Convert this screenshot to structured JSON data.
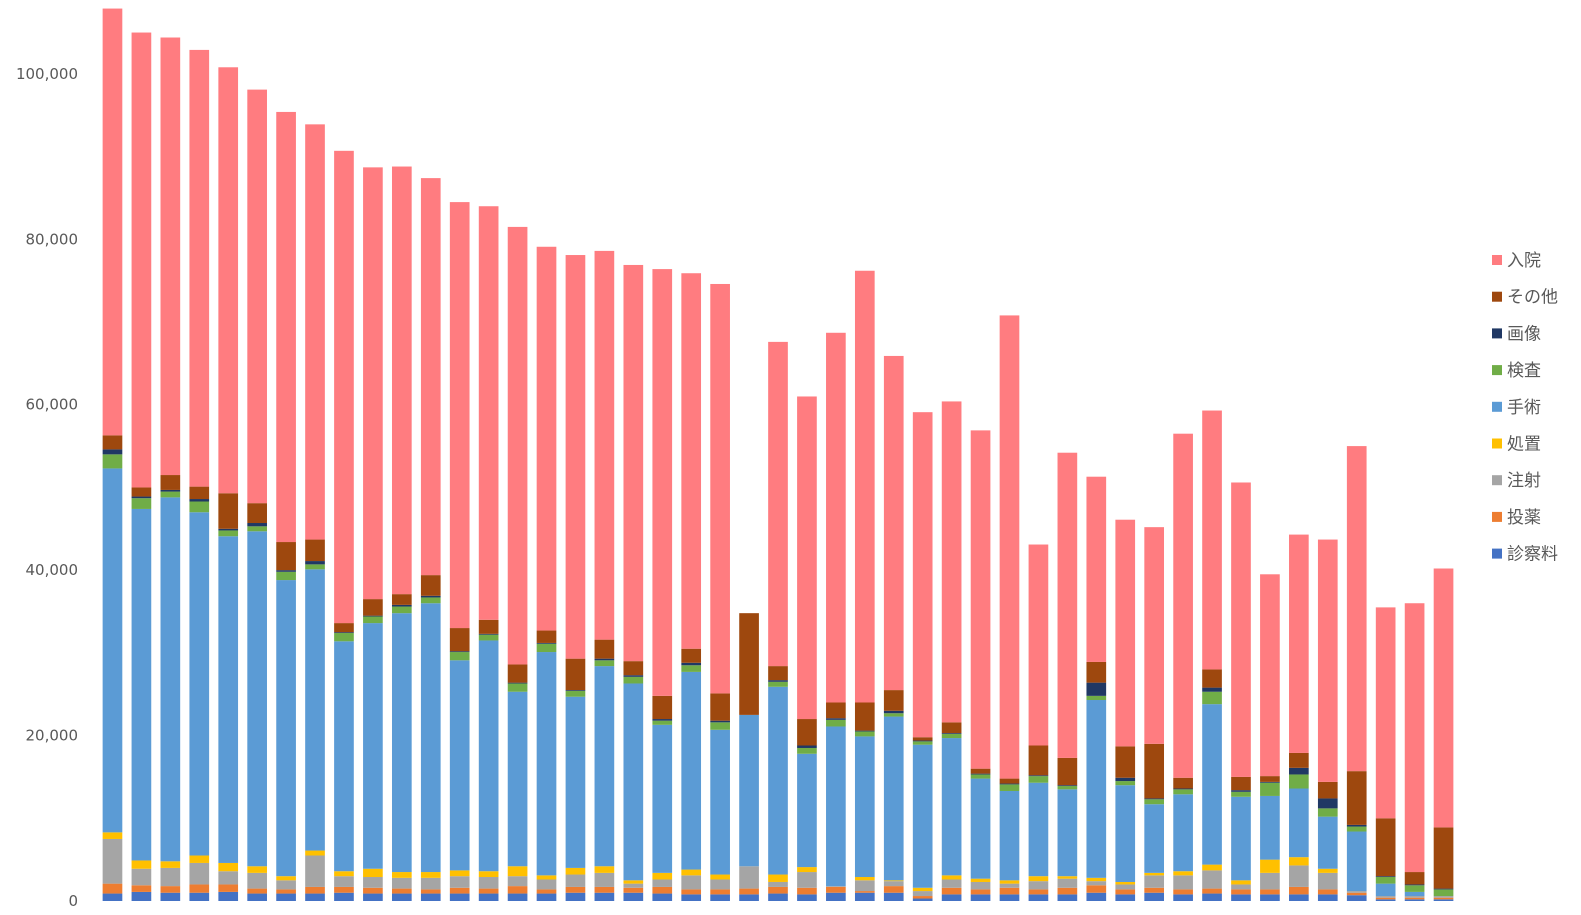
{
  "chart_data": {
    "type": "bar",
    "stacked": true,
    "title": "",
    "xlabel": "",
    "ylabel": "",
    "ylim": [
      0,
      107000
    ],
    "y_ticks": [
      "0",
      "20,000",
      "40,000",
      "60,000",
      "80,000",
      "100,000"
    ],
    "y_tick_values": [
      0,
      20000,
      40000,
      60000,
      80000,
      100000
    ],
    "grid": false,
    "legend_position": "right",
    "bar_count": 47,
    "series": [
      {
        "name": "診察料",
        "color": "#4472C4",
        "values": [
          900,
          1100,
          1000,
          1000,
          1100,
          900,
          900,
          900,
          1000,
          900,
          900,
          900,
          900,
          900,
          900,
          900,
          1000,
          1000,
          1000,
          900,
          800,
          800,
          800,
          900,
          800,
          1000,
          1000,
          1000,
          300,
          800,
          800,
          800,
          800,
          800,
          1000,
          800,
          1000,
          800,
          900,
          800,
          800,
          800,
          800,
          700,
          200,
          200,
          200
        ]
      },
      {
        "name": "投薬",
        "color": "#ED7D31",
        "values": [
          1200,
          800,
          800,
          1000,
          900,
          600,
          500,
          800,
          700,
          700,
          600,
          500,
          700,
          600,
          900,
          500,
          700,
          700,
          600,
          800,
          600,
          600,
          700,
          800,
          800,
          700,
          200,
          800,
          300,
          800,
          600,
          800,
          600,
          800,
          900,
          600,
          600,
          600,
          600,
          600,
          600,
          900,
          600,
          300,
          200,
          200,
          200
        ]
      },
      {
        "name": "注射",
        "color": "#A5A5A5",
        "values": [
          5400,
          2000,
          2200,
          2600,
          1600,
          1900,
          1100,
          3800,
          1300,
          1300,
          1300,
          1400,
          1400,
          1400,
          1200,
          1200,
          1500,
          1700,
          500,
          900,
          1700,
          1200,
          2700,
          600,
          1900,
          100,
          1300,
          600,
          600,
          1000,
          900,
          500,
          1000,
          1100,
          500,
          600,
          1500,
          1700,
          2200,
          600,
          2000,
          2600,
          2000,
          200,
          200,
          200,
          200
        ]
      },
      {
        "name": "処置",
        "color": "#FFC000",
        "values": [
          800,
          1000,
          800,
          900,
          1000,
          800,
          500,
          600,
          600,
          1000,
          700,
          700,
          700,
          700,
          1200,
          500,
          800,
          800,
          400,
          800,
          700,
          600,
          0,
          900,
          600,
          0,
          400,
          100,
          400,
          500,
          400,
          400,
          600,
          300,
          400,
          300,
          300,
          500,
          700,
          500,
          1600,
          1000,
          500,
          0,
          0,
          0,
          0
        ]
      },
      {
        "name": "手術",
        "color": "#5B9BD5",
        "values": [
          44000,
          42500,
          44000,
          41500,
          39500,
          40500,
          35800,
          34000,
          27800,
          29700,
          31300,
          32500,
          25400,
          27900,
          21100,
          27000,
          20700,
          24200,
          23800,
          17900,
          23900,
          17500,
          18300,
          22700,
          13700,
          19300,
          17000,
          19800,
          17300,
          16600,
          12100,
          10800,
          11300,
          10500,
          21500,
          11700,
          8300,
          9300,
          19400,
          10100,
          7700,
          8300,
          6300,
          7200,
          1500,
          500,
          0
        ]
      },
      {
        "name": "検査",
        "color": "#70AD47",
        "values": [
          1700,
          1300,
          700,
          1300,
          700,
          600,
          1000,
          600,
          1000,
          800,
          800,
          700,
          1000,
          700,
          1000,
          1000,
          700,
          700,
          800,
          500,
          800,
          900,
          0,
          600,
          700,
          800,
          600,
          400,
          400,
          500,
          500,
          800,
          800,
          400,
          500,
          500,
          600,
          600,
          1500,
          600,
          1600,
          1700,
          1000,
          600,
          800,
          800,
          800
        ]
      },
      {
        "name": "画像",
        "color": "#203864",
        "values": [
          600,
          200,
          200,
          300,
          200,
          400,
          200,
          400,
          100,
          100,
          200,
          200,
          100,
          100,
          100,
          100,
          100,
          200,
          200,
          200,
          300,
          200,
          0,
          200,
          300,
          200,
          100,
          300,
          100,
          100,
          100,
          100,
          100,
          100,
          1600,
          400,
          100,
          100,
          500,
          200,
          100,
          800,
          1200,
          200,
          100,
          100,
          100
        ]
      },
      {
        "name": "その他",
        "color": "#9E480E",
        "values": [
          1700,
          1100,
          1800,
          1500,
          4300,
          2400,
          3400,
          2600,
          1100,
          2000,
          1300,
          2500,
          2800,
          1700,
          2200,
          1500,
          3800,
          2300,
          1700,
          2800,
          1700,
          3300,
          12300,
          1700,
          3200,
          1900,
          3400,
          2500,
          400,
          1300,
          600,
          600,
          3600,
          3300,
          2500,
          3800,
          6600,
          1300,
          2200,
          1600,
          700,
          1800,
          2000,
          6500,
          7000,
          1500,
          7400
        ]
      },
      {
        "name": "入院",
        "color": "#FF7C80",
        "values": [
          51600,
          55000,
          52900,
          52800,
          51500,
          50000,
          52000,
          50200,
          57100,
          52200,
          51700,
          48000,
          51500,
          50000,
          52900,
          46400,
          48800,
          47000,
          47900,
          51600,
          45400,
          49500,
          0,
          39200,
          39000,
          44700,
          52200,
          40400,
          39300,
          38800,
          40900,
          56000,
          24300,
          36900,
          22400,
          27400,
          26200,
          41600,
          31300,
          35600,
          24400,
          26400,
          29300,
          39300,
          25500,
          32500,
          31300
        ]
      }
    ]
  },
  "legend": {
    "items": [
      {
        "label": "入院",
        "color": "#FF7C80"
      },
      {
        "label": "その他",
        "color": "#9E480E"
      },
      {
        "label": "画像",
        "color": "#203864"
      },
      {
        "label": "検査",
        "color": "#70AD47"
      },
      {
        "label": "手術",
        "color": "#5B9BD5"
      },
      {
        "label": "処置",
        "color": "#FFC000"
      },
      {
        "label": "注射",
        "color": "#A5A5A5"
      },
      {
        "label": "投薬",
        "color": "#ED7D31"
      },
      {
        "label": "診察料",
        "color": "#4472C4"
      }
    ]
  }
}
